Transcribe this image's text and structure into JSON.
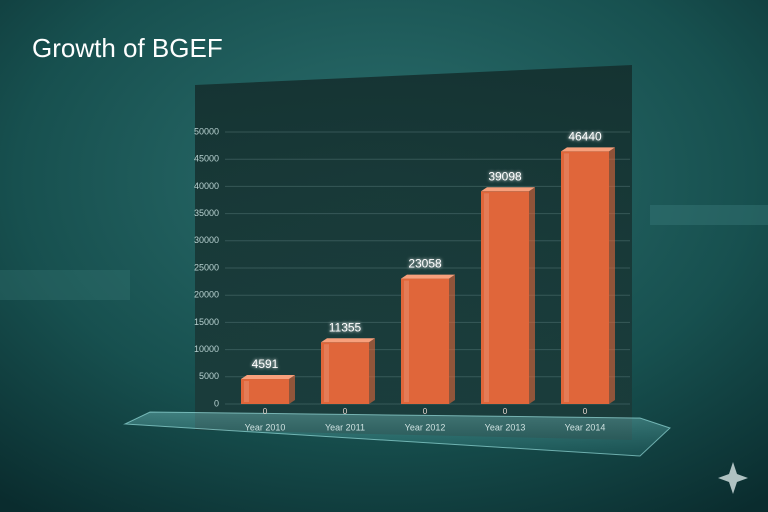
{
  "chart_data": {
    "type": "bar",
    "title": "Growth of BGEF",
    "categories": [
      "Year 2010",
      "Year 2011",
      "Year 2012",
      "Year 2013",
      "Year 2014"
    ],
    "values": [
      4591,
      11355,
      23058,
      39098,
      46440
    ],
    "base_labels": [
      0,
      0,
      0,
      0,
      0
    ],
    "color": "#e0663a",
    "ylim": [
      0,
      50000
    ],
    "yticks": [
      0,
      5000,
      10000,
      15000,
      20000,
      25000,
      30000,
      35000,
      40000,
      45000,
      50000
    ],
    "grid": true
  }
}
